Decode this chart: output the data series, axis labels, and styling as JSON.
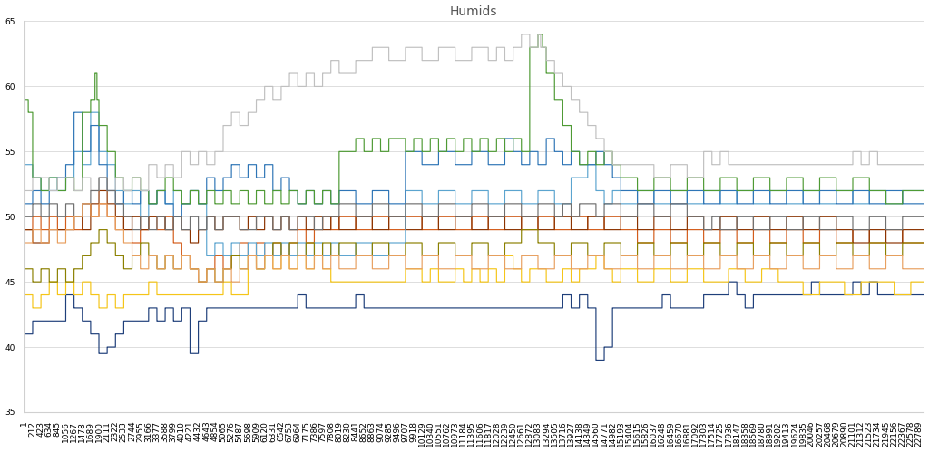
{
  "title": "Humids",
  "xlim": [
    1,
    22900
  ],
  "ylim": [
    35,
    65
  ],
  "yticks": [
    35,
    40,
    45,
    50,
    55,
    60,
    65
  ],
  "n_points": 22900,
  "sensor_colors": [
    "#1F3F7A",
    "#F5C518",
    "#D35C1A",
    "#8B3300",
    "#5BA4CF",
    "#2E75B6",
    "#4E9A34",
    "#C0C0C0",
    "#707070",
    "#8B8000",
    "#E8A060"
  ],
  "background_color": "#FFFFFF",
  "grid_color": "#D0D0D0",
  "title_fontsize": 10,
  "tick_fontsize": 6.5
}
